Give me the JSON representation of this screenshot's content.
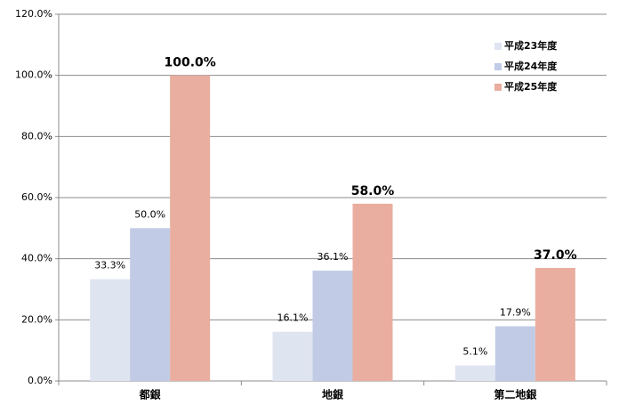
{
  "chart_data": {
    "type": "bar",
    "categories": [
      "都銀",
      "地銀",
      "第二地銀"
    ],
    "series": [
      {
        "name": "平成23年度",
        "color": "#dfe4f1",
        "values": [
          33.3,
          16.1,
          5.1
        ],
        "value_labels": [
          "33.3%",
          "16.1%",
          "5.1%"
        ]
      },
      {
        "name": "平成24年度",
        "color": "#c1cbe5",
        "values": [
          50.0,
          36.1,
          17.9
        ],
        "value_labels": [
          "50.0%",
          "36.1%",
          "17.9%"
        ]
      },
      {
        "name": "平成25年度",
        "color": "#e9ae9f",
        "values": [
          100.0,
          58.0,
          37.0
        ],
        "value_labels": [
          "100.0%",
          "58.0%",
          "37.0%"
        ]
      }
    ],
    "ylim": [
      0,
      120
    ],
    "yticks": [
      {
        "value": 0,
        "label": "0.0%"
      },
      {
        "value": 20,
        "label": "20.0%"
      },
      {
        "value": 40,
        "label": "40.0%"
      },
      {
        "value": 60,
        "label": "60.0%"
      },
      {
        "value": 80,
        "label": "80.0%"
      },
      {
        "value": 100,
        "label": "100.0%"
      },
      {
        "value": 120,
        "label": "120.0%"
      }
    ],
    "grid": true,
    "legend": "top-right"
  }
}
